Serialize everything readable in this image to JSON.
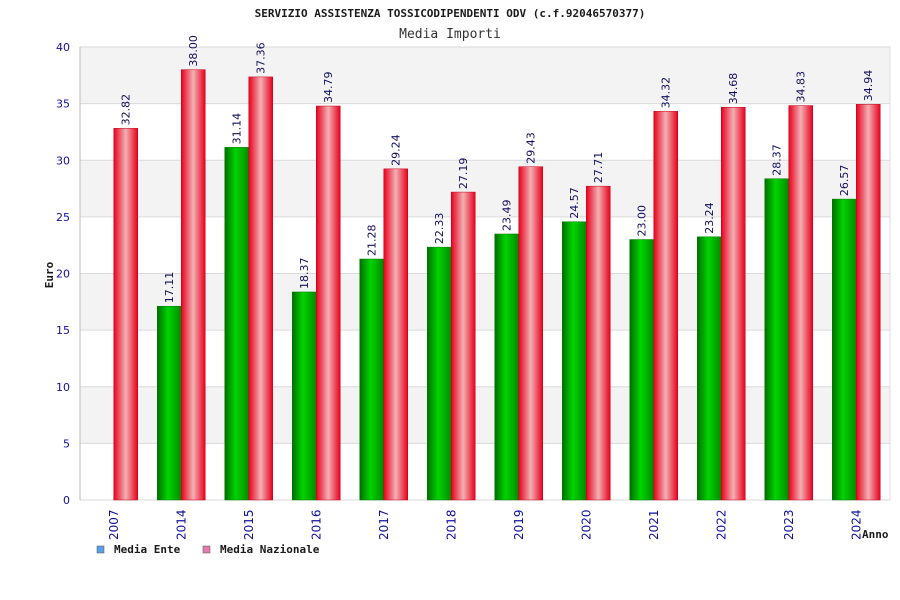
{
  "chart_data": {
    "type": "bar",
    "title": "SERVIZIO ASSISTENZA TOSSICODIPENDENTI ODV (c.f.92046570377)",
    "subtitle": "Media Importi",
    "xlabel": "Anno",
    "ylabel": "Euro",
    "ylim": [
      0,
      40
    ],
    "yticks": [
      0,
      5,
      10,
      15,
      20,
      25,
      30,
      35,
      40
    ],
    "grid": true,
    "legend_position": "bottom-left",
    "categories": [
      "2007",
      "2014",
      "2015",
      "2016",
      "2017",
      "2018",
      "2019",
      "2020",
      "2021",
      "2022",
      "2023",
      "2024"
    ],
    "series": [
      {
        "name": "Media Ente",
        "color": "#00a000",
        "legend_color": "#5aa0e6",
        "values": [
          null,
          17.11,
          31.14,
          18.37,
          21.28,
          22.33,
          23.49,
          24.57,
          23.0,
          23.24,
          28.37,
          26.57
        ],
        "labels": [
          "",
          "17.11",
          "31.14",
          "18.37",
          "21.28",
          "22.33",
          "23.49",
          "24.57",
          "23.00",
          "23.24",
          "28.37",
          "26.57"
        ]
      },
      {
        "name": "Media Nazionale",
        "color": "#e8001c",
        "legend_color": "#e07ab0",
        "values": [
          32.82,
          38.0,
          37.36,
          34.79,
          29.24,
          27.19,
          29.43,
          27.71,
          34.32,
          34.68,
          34.83,
          34.94
        ],
        "labels": [
          "32.82",
          "38.00",
          "37.36",
          "34.79",
          "29.24",
          "27.19",
          "29.43",
          "27.71",
          "34.32",
          "34.68",
          "34.83",
          "34.94"
        ]
      }
    ]
  }
}
